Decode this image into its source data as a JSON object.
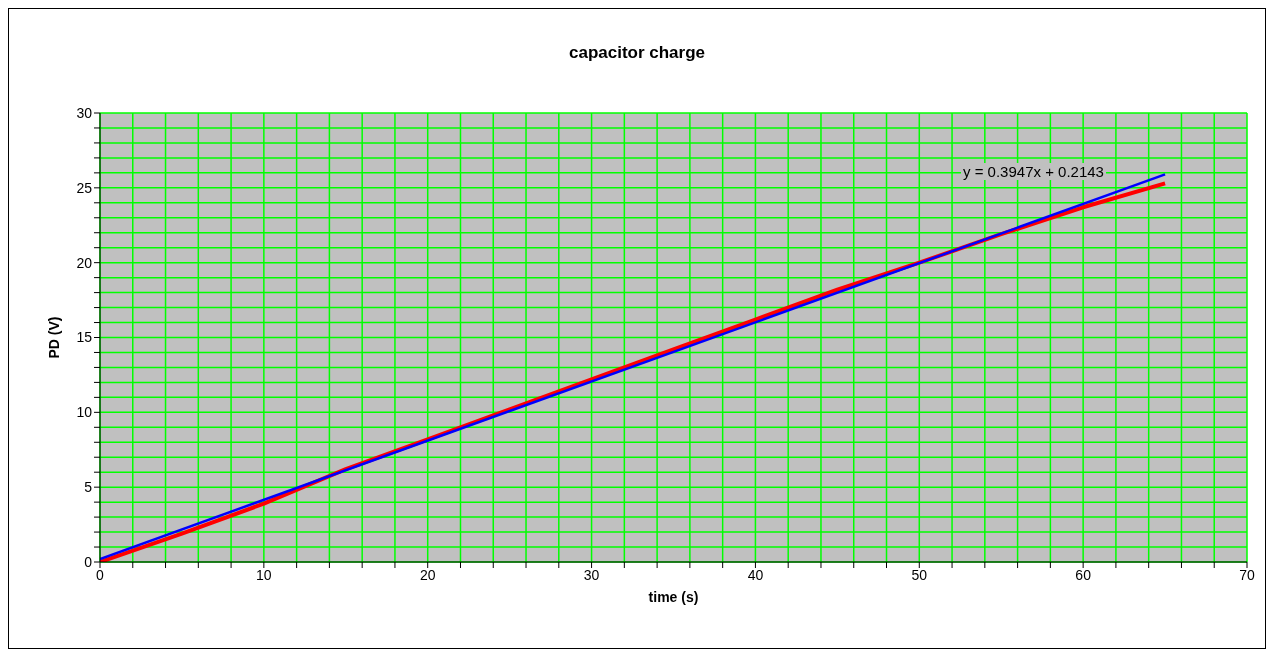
{
  "chart_data": {
    "type": "line",
    "title": "capacitor charge",
    "xlabel": "time (s)",
    "ylabel": "PD (V)",
    "xlim": [
      0,
      70
    ],
    "ylim": [
      0,
      30
    ],
    "xticks": [
      0,
      {
        "value": 2,
        "label": null
      },
      {
        "value": 4,
        "label": null
      },
      {
        "value": 6,
        "label": null
      },
      {
        "value": 8,
        "label": null
      },
      10,
      {
        "value": 12,
        "label": null
      },
      {
        "value": 14,
        "label": null
      },
      {
        "value": 16,
        "label": null
      },
      {
        "value": 18,
        "label": null
      },
      20,
      {
        "value": 22,
        "label": null
      },
      {
        "value": 24,
        "label": null
      },
      {
        "value": 26,
        "label": null
      },
      {
        "value": 28,
        "label": null
      },
      30,
      {
        "value": 32,
        "label": null
      },
      {
        "value": 34,
        "label": null
      },
      {
        "value": 36,
        "label": null
      },
      {
        "value": 38,
        "label": null
      },
      40,
      {
        "value": 42,
        "label": null
      },
      {
        "value": 44,
        "label": null
      },
      {
        "value": 46,
        "label": null
      },
      {
        "value": 48,
        "label": null
      },
      50,
      {
        "value": 52,
        "label": null
      },
      {
        "value": 54,
        "label": null
      },
      {
        "value": 56,
        "label": null
      },
      {
        "value": 58,
        "label": null
      },
      60,
      {
        "value": 62,
        "label": null
      },
      {
        "value": 64,
        "label": null
      },
      {
        "value": 66,
        "label": null
      },
      {
        "value": 68,
        "label": null
      },
      70
    ],
    "yticks": [
      0,
      {
        "value": 1,
        "label": null
      },
      {
        "value": 2,
        "label": null
      },
      {
        "value": 3,
        "label": null
      },
      {
        "value": 4,
        "label": null
      },
      5,
      {
        "value": 6,
        "label": null
      },
      {
        "value": 7,
        "label": null
      },
      {
        "value": 8,
        "label": null
      },
      {
        "value": 9,
        "label": null
      },
      10,
      {
        "value": 11,
        "label": null
      },
      {
        "value": 12,
        "label": null
      },
      {
        "value": 13,
        "label": null
      },
      {
        "value": 14,
        "label": null
      },
      15,
      {
        "value": 16,
        "label": null
      },
      {
        "value": 17,
        "label": null
      },
      {
        "value": 18,
        "label": null
      },
      {
        "value": 19,
        "label": null
      },
      20,
      {
        "value": 21,
        "label": null
      },
      {
        "value": 22,
        "label": null
      },
      {
        "value": 23,
        "label": null
      },
      {
        "value": 24,
        "label": null
      },
      25,
      {
        "value": 26,
        "label": null
      },
      {
        "value": 27,
        "label": null
      },
      {
        "value": 28,
        "label": null
      },
      {
        "value": 29,
        "label": null
      },
      30
    ],
    "grid": true,
    "marker": "none",
    "line_style": "solid",
    "series": [
      {
        "color": "#ff0000",
        "x": [
          0,
          5,
          10,
          15,
          20,
          25,
          30,
          35,
          40,
          45,
          50,
          55,
          60,
          65
        ],
        "values": [
          0,
          1.9,
          3.9,
          6.2,
          8.2,
          10.2,
          12.2,
          14.2,
          16.2,
          18.2,
          20.0,
          21.9,
          23.7,
          25.3
        ]
      },
      {
        "type": "line",
        "color": "#0000ff",
        "x": [
          0,
          65
        ],
        "values": [
          0.2,
          25.9
        ]
      }
    ],
    "annotations": [
      "y = 0.3947x + 0.2143"
    ]
  }
}
